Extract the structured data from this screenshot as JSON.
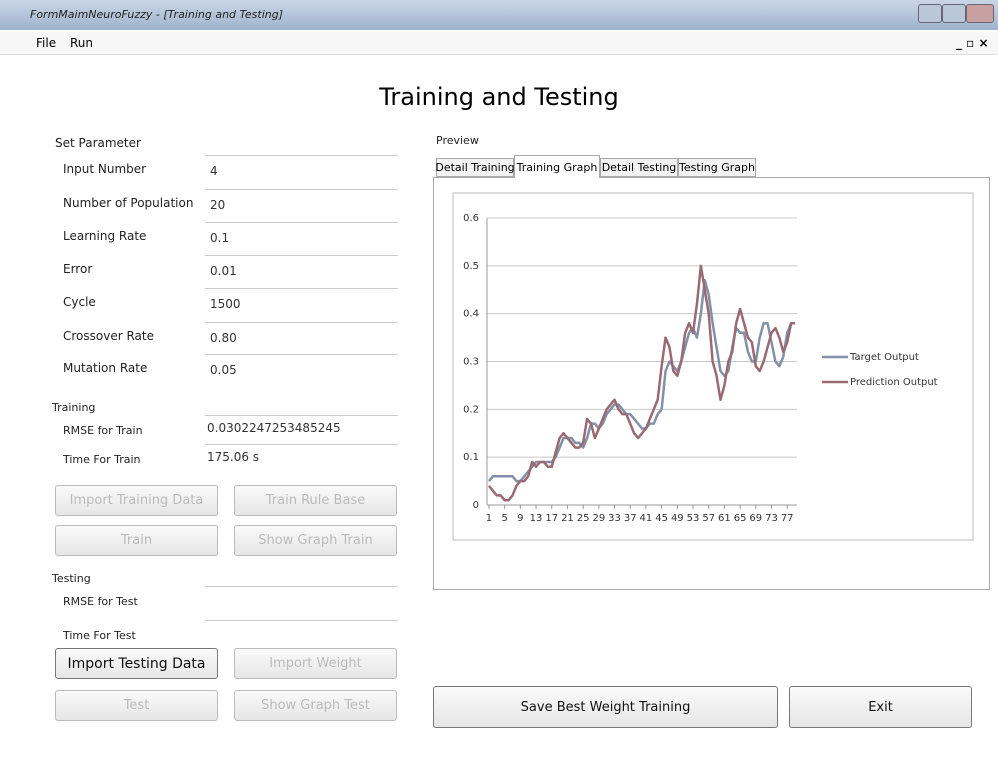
{
  "window": {
    "title": "FormMaimNeuroFuzzy - [Training and Testing]"
  },
  "menu": [
    "File",
    "Run"
  ],
  "heading": "Training and Testing",
  "parameters": {
    "title": "Set Parameter",
    "rows": [
      {
        "label": "Input Number",
        "value": "4"
      },
      {
        "label": "Number of Population",
        "value": "20"
      },
      {
        "label": "Learning Rate",
        "value": "0.1"
      },
      {
        "label": "Error",
        "value": "0.01"
      },
      {
        "label": "Cycle",
        "value": "1500"
      },
      {
        "label": "Crossover Rate",
        "value": "0.80"
      },
      {
        "label": "Mutation Rate",
        "value": "0.05"
      }
    ]
  },
  "training": {
    "title": "Training",
    "rows": [
      {
        "label": "RMSE for Train",
        "value": "0.0302247253485245"
      },
      {
        "label": "Time For Train",
        "value": "175.06 s"
      }
    ],
    "buttons": [
      {
        "label": "Import Training Data",
        "enabled": false
      },
      {
        "label": "Train Rule Base",
        "enabled": false
      },
      {
        "label": "Train",
        "enabled": false
      },
      {
        "label": "Show Graph Train",
        "enabled": false
      }
    ]
  },
  "testing": {
    "title": "Testing",
    "rows": [
      {
        "label": "RMSE for Test"
      },
      {
        "label": "Time For Test"
      }
    ],
    "buttons": [
      {
        "label": "Import Testing Data",
        "enabled": true
      },
      {
        "label": "Import Weight",
        "enabled": false
      },
      {
        "label": "Test",
        "enabled": false
      },
      {
        "label": "Show Graph Test",
        "enabled": false
      }
    ]
  },
  "preview": {
    "title": "Preview",
    "tabs": [
      "Detail Training",
      "Training Graph",
      "Detail Testing",
      "Testing Graph"
    ],
    "selected_tab": 1
  },
  "chart": {
    "type": "line",
    "x": [
      1,
      2,
      3,
      4,
      5,
      6,
      7,
      8,
      9,
      10,
      11,
      12,
      13,
      14,
      15,
      16,
      17,
      18,
      19,
      20,
      21,
      22,
      23,
      24,
      25,
      26,
      27,
      28,
      29,
      30,
      31,
      32,
      33,
      34,
      35,
      36,
      37,
      38,
      39,
      40,
      41,
      42,
      43,
      44,
      45,
      46,
      47,
      48,
      49,
      50,
      51,
      52,
      53,
      54,
      55,
      56,
      57,
      58,
      59,
      60,
      61,
      62,
      63,
      64,
      65,
      66,
      67,
      68,
      69,
      70,
      71,
      72,
      73,
      74,
      75,
      76,
      77,
      78,
      79
    ],
    "xlim": [
      0.5,
      79.5
    ],
    "xticks": [
      1,
      5,
      9,
      13,
      17,
      21,
      25,
      29,
      33,
      37,
      41,
      45,
      49,
      53,
      57,
      61,
      65,
      69,
      73,
      77
    ],
    "ylim": [
      0,
      0.6
    ],
    "yticks": [
      0,
      0.1,
      0.2,
      0.3,
      0.4,
      0.5,
      0.6
    ],
    "grid": true,
    "series": [
      {
        "name": "Target Output",
        "color": "#8391a8",
        "values": [
          0.05,
          0.06,
          0.06,
          0.06,
          0.06,
          0.06,
          0.06,
          0.05,
          0.05,
          0.06,
          0.07,
          0.08,
          0.09,
          0.09,
          0.09,
          0.09,
          0.09,
          0.1,
          0.12,
          0.14,
          0.14,
          0.14,
          0.13,
          0.13,
          0.12,
          0.14,
          0.17,
          0.17,
          0.16,
          0.17,
          0.19,
          0.2,
          0.21,
          0.21,
          0.2,
          0.19,
          0.19,
          0.18,
          0.17,
          0.16,
          0.16,
          0.17,
          0.17,
          0.19,
          0.2,
          0.28,
          0.3,
          0.29,
          0.28,
          0.3,
          0.33,
          0.36,
          0.37,
          0.35,
          0.4,
          0.47,
          0.44,
          0.38,
          0.33,
          0.28,
          0.27,
          0.28,
          0.33,
          0.37,
          0.36,
          0.36,
          0.32,
          0.3,
          0.3,
          0.35,
          0.38,
          0.38,
          0.34,
          0.3,
          0.29,
          0.31,
          0.36,
          0.38,
          0.38
        ]
      },
      {
        "name": "Prediction Output",
        "color": "#9a6a72",
        "values": [
          0.04,
          0.03,
          0.02,
          0.02,
          0.01,
          0.01,
          0.02,
          0.04,
          0.05,
          0.05,
          0.06,
          0.09,
          0.08,
          0.09,
          0.09,
          0.08,
          0.08,
          0.11,
          0.14,
          0.15,
          0.14,
          0.13,
          0.12,
          0.12,
          0.13,
          0.18,
          0.17,
          0.14,
          0.16,
          0.18,
          0.2,
          0.21,
          0.22,
          0.2,
          0.19,
          0.19,
          0.17,
          0.15,
          0.14,
          0.15,
          0.16,
          0.18,
          0.2,
          0.22,
          0.29,
          0.35,
          0.33,
          0.28,
          0.27,
          0.3,
          0.36,
          0.38,
          0.36,
          0.42,
          0.5,
          0.45,
          0.4,
          0.3,
          0.27,
          0.22,
          0.25,
          0.3,
          0.32,
          0.38,
          0.41,
          0.38,
          0.35,
          0.34,
          0.29,
          0.28,
          0.3,
          0.33,
          0.36,
          0.37,
          0.35,
          0.32,
          0.34,
          0.38,
          0.38
        ]
      }
    ]
  },
  "actions": [
    "Save Best Weight Training",
    "Exit"
  ]
}
